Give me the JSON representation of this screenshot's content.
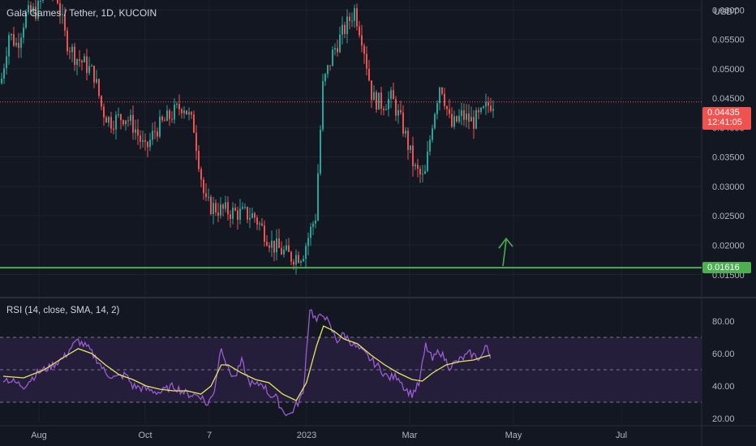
{
  "header": {
    "title": "Gala Games / Tether, 1D, KUCOIN",
    "currency": "USDT"
  },
  "colors": {
    "background": "#131722",
    "up": "#26a69a",
    "down": "#ef5350",
    "support_line": "#4caf50",
    "rsi": "#9c5cd4",
    "rsi_ma": "#e3e85e",
    "rsi_band": "#241e3a",
    "tag_current": "#ef5350",
    "tag_support": "#4caf50"
  },
  "price_tag": {
    "value": "0.04435",
    "countdown": "12:41:05"
  },
  "support_tag": {
    "value": "0.01616"
  },
  "rsi_title": "RSI (14, close, SMA, 14, 2)",
  "chart_data": [
    {
      "type": "candlestick",
      "title": "Gala Games / Tether, 1D, KUCOIN",
      "y_axis": {
        "unit": "USDT",
        "ticks": [
          "0.06000",
          "0.05500",
          "0.05000",
          "0.04500",
          "0.04000",
          "0.03500",
          "0.03000",
          "0.02500",
          "0.02000",
          "0.01500"
        ],
        "range": [
          0.0148,
          0.061
        ]
      },
      "x_axis": {
        "ticks": [
          "Aug",
          "Oct",
          "7",
          "2023",
          "Mar",
          "May",
          "Jul"
        ]
      },
      "close_path": [
        [
          "Jul 1",
          0.0475
        ],
        [
          "Jul 8",
          0.056
        ],
        [
          "Jul 15",
          0.054
        ],
        [
          "Jul 22",
          0.059
        ],
        [
          "Aug 1",
          0.06
        ],
        [
          "Aug 10",
          0.064
        ],
        [
          "Aug 18",
          0.062
        ],
        [
          "Aug 25",
          0.055
        ],
        [
          "Sep 1",
          0.052
        ],
        [
          "Sep 8",
          0.051
        ],
        [
          "Sep 15",
          0.049
        ],
        [
          "Sep 20",
          0.043
        ],
        [
          "Sep 27",
          0.041
        ],
        [
          "Oct 4",
          0.042
        ],
        [
          "Oct 12",
          0.04
        ],
        [
          "Oct 20",
          0.036
        ],
        [
          "Oct 27",
          0.0395
        ],
        [
          "Nov 1",
          0.044
        ],
        [
          "Nov 4",
          0.04
        ],
        [
          "Nov 7",
          0.027
        ],
        [
          "Nov 15",
          0.026
        ],
        [
          "Nov 25",
          0.0255
        ],
        [
          "Dec 5",
          0.025
        ],
        [
          "Dec 15",
          0.02
        ],
        [
          "Dec 25",
          0.018
        ],
        [
          "Dec 30",
          0.0185
        ],
        [
          "Jan 5",
          0.025
        ],
        [
          "Jan 10",
          0.047
        ],
        [
          "Jan 18",
          0.053
        ],
        [
          "Jan 28",
          0.06
        ],
        [
          "Feb 3",
          0.055
        ],
        [
          "Feb 10",
          0.045
        ],
        [
          "Feb 18",
          0.044
        ],
        [
          "Feb 25",
          0.045
        ],
        [
          "Mar 1",
          0.04
        ],
        [
          "Mar 6",
          0.033
        ],
        [
          "Mar 10",
          0.031
        ],
        [
          "Mar 14",
          0.041
        ],
        [
          "Mar 17",
          0.048
        ],
        [
          "Mar 22",
          0.04
        ],
        [
          "Mar 28",
          0.042
        ],
        [
          "Apr 3",
          0.041
        ],
        [
          "Apr 8",
          0.042
        ],
        [
          "Apr 14",
          0.044
        ],
        [
          "Apr 17",
          0.0444
        ]
      ],
      "current_price": 0.04435,
      "support_level": 0.01616,
      "annotation": "upward arrow above support line"
    },
    {
      "type": "line",
      "title": "RSI (14, close, SMA, 14, 2)",
      "y_axis": {
        "ticks": [
          "80.00",
          "60.00",
          "40.00",
          "20.00"
        ],
        "range": [
          17,
          93
        ]
      },
      "bands": {
        "upper": 70,
        "middle": 50,
        "lower": 30
      },
      "series": [
        {
          "name": "RSI",
          "values": [
            [
              0,
              45
            ],
            [
              6,
              40
            ],
            [
              10,
              48
            ],
            [
              14,
              52
            ],
            [
              18,
              58
            ],
            [
              20,
              64
            ],
            [
              22,
              68
            ],
            [
              25,
              63
            ],
            [
              28,
              55
            ],
            [
              30,
              48
            ],
            [
              33,
              45
            ],
            [
              36,
              47
            ],
            [
              38,
              40
            ],
            [
              42,
              38
            ],
            [
              46,
              36
            ],
            [
              50,
              40
            ],
            [
              54,
              35
            ],
            [
              58,
              34
            ],
            [
              60,
              28
            ],
            [
              62,
              38
            ],
            [
              64,
              65
            ],
            [
              66,
              50
            ],
            [
              68,
              45
            ],
            [
              70,
              55
            ],
            [
              72,
              43
            ],
            [
              74,
              40
            ],
            [
              76,
              42
            ],
            [
              78,
              35
            ],
            [
              80,
              33
            ],
            [
              82,
              25
            ],
            [
              84,
              22
            ],
            [
              86,
              28
            ],
            [
              88,
              35
            ],
            [
              90,
              88
            ],
            [
              92,
              80
            ],
            [
              94,
              85
            ],
            [
              96,
              76
            ],
            [
              98,
              68
            ],
            [
              100,
              72
            ],
            [
              103,
              65
            ],
            [
              106,
              60
            ],
            [
              110,
              52
            ],
            [
              113,
              45
            ],
            [
              116,
              46
            ],
            [
              118,
              38
            ],
            [
              120,
              35
            ],
            [
              122,
              41
            ],
            [
              124,
              65
            ],
            [
              126,
              56
            ],
            [
              128,
              62
            ],
            [
              131,
              52
            ],
            [
              134,
              56
            ],
            [
              137,
              60
            ],
            [
              140,
              57
            ],
            [
              142,
              65
            ],
            [
              143,
              57
            ]
          ]
        },
        {
          "name": "RSI-based MA",
          "values": [
            [
              0,
              46
            ],
            [
              6,
              45
            ],
            [
              12,
              50
            ],
            [
              18,
              58
            ],
            [
              22,
              63
            ],
            [
              26,
              60
            ],
            [
              30,
              53
            ],
            [
              34,
              47
            ],
            [
              38,
              44
            ],
            [
              42,
              40
            ],
            [
              46,
              38
            ],
            [
              50,
              37
            ],
            [
              54,
              37
            ],
            [
              58,
              35
            ],
            [
              61,
              40
            ],
            [
              64,
              53
            ],
            [
              66,
              53
            ],
            [
              70,
              48
            ],
            [
              74,
              44
            ],
            [
              78,
              42
            ],
            [
              82,
              35
            ],
            [
              86,
              31
            ],
            [
              89,
              42
            ],
            [
              92,
              65
            ],
            [
              94,
              77
            ],
            [
              97,
              74
            ],
            [
              100,
              69
            ],
            [
              104,
              66
            ],
            [
              108,
              59
            ],
            [
              112,
              53
            ],
            [
              116,
              48
            ],
            [
              120,
              44
            ],
            [
              123,
              43
            ],
            [
              126,
              48
            ],
            [
              130,
              53
            ],
            [
              134,
              55
            ],
            [
              138,
              56
            ],
            [
              141,
              58
            ],
            [
              143,
              59
            ]
          ]
        }
      ]
    }
  ]
}
